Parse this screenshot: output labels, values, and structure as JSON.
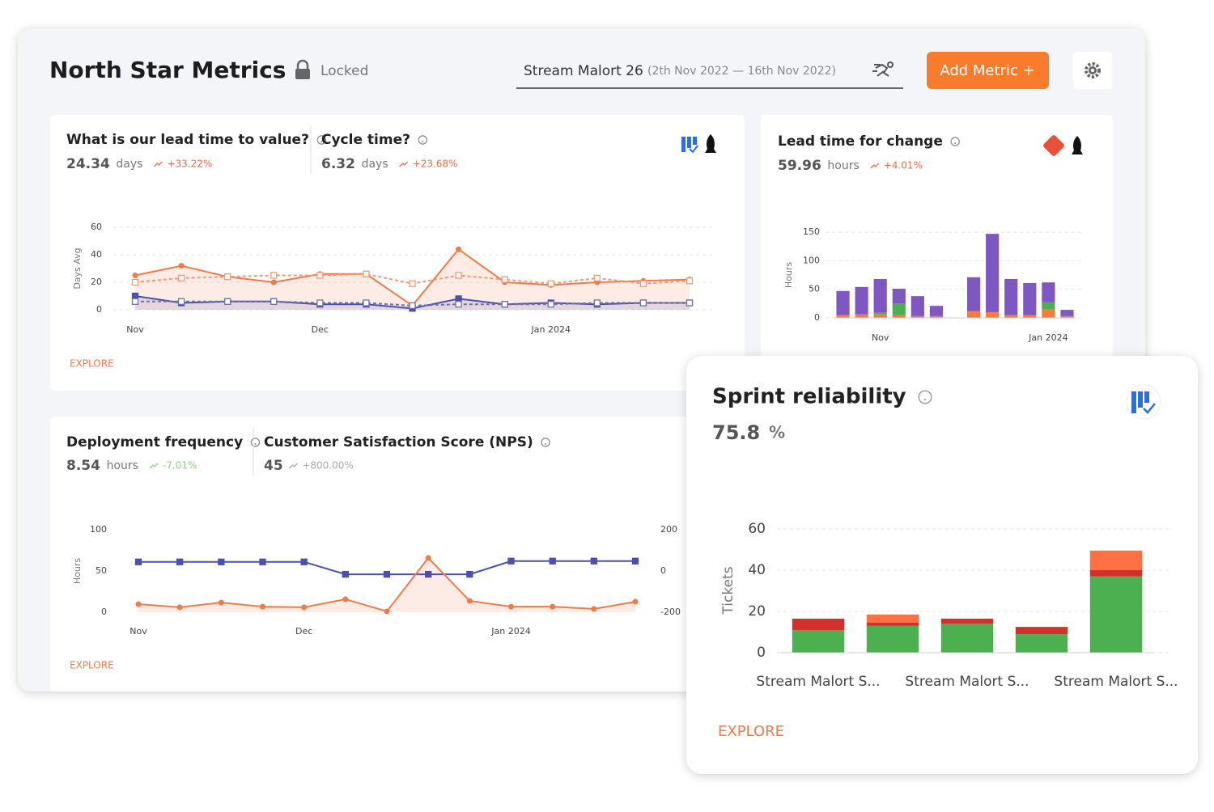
{
  "header": {
    "title": "North Star Metrics",
    "lock": "Locked",
    "stream": "Stream Malort 26",
    "range": "(2th Nov 2022 — 16th Nov 2022)",
    "button": "Add Metric +"
  },
  "panels": [
    {
      "metrics": [
        {
          "title": "What is our lead time to value?",
          "value": "24.34",
          "unit": "days",
          "change": "+33.22%",
          "change_color": "#e8704a"
        },
        {
          "title": "Cycle time?",
          "value": "6.32",
          "unit": "days",
          "change": "+23.68%",
          "change_color": "#e8704a"
        }
      ],
      "explore": "EXPLORE",
      "chart": {
        "type": "line",
        "ylabel": "Days Avg",
        "categories": [
          "Nov",
          null,
          null,
          null,
          "Dec",
          null,
          null,
          null,
          null,
          "Jan 2024",
          null,
          null,
          null
        ],
        "ylim": [
          0,
          60
        ],
        "yticks": [
          0,
          20,
          40,
          60
        ],
        "grid": true,
        "series": [
          {
            "color": "#f07a4a",
            "dash": false,
            "area": true,
            "marker": "circle",
            "values": [
              25,
              32,
              24,
              20,
              26,
              26,
              3,
              44,
              20,
              18,
              20,
              21,
              22
            ]
          },
          {
            "color": "#f29a72",
            "dash": true,
            "area": false,
            "marker": "hollow-square",
            "values": [
              20,
              23,
              24,
              25,
              25,
              26,
              19,
              25,
              22,
              19,
              23,
              19,
              21
            ]
          },
          {
            "color": "#4b4fb0",
            "dash": false,
            "area": true,
            "marker": "square",
            "values": [
              10,
              5,
              6,
              6,
              4,
              4,
              1,
              8,
              4,
              5,
              4,
              5,
              5
            ]
          },
          {
            "color": "#6c75a8",
            "dash": true,
            "area": false,
            "marker": "hollow-square",
            "values": [
              6,
              6,
              6,
              6,
              5,
              5,
              3,
              4,
              4,
              4,
              5,
              5,
              5
            ]
          }
        ]
      }
    },
    {
      "metrics": [
        {
          "title": "Lead time for change",
          "value": "59.96",
          "unit": "hours",
          "change": "+4.01%",
          "change_color": "#e8704a"
        }
      ],
      "chart": {
        "type": "bar",
        "ylabel": "Hours",
        "categories": [
          null,
          null,
          "Nov",
          null,
          null,
          null,
          null,
          null,
          null,
          null,
          null,
          "Jan 2024",
          null
        ],
        "ylim": [
          0,
          150
        ],
        "yticks": [
          0,
          50,
          100,
          150
        ],
        "grid": true,
        "series": [
          {
            "color": "#f47c3c",
            "values": [
              5,
              6,
              6,
              5,
              3,
              3,
              0,
              12,
              10,
              5,
              5,
              15,
              3
            ]
          },
          {
            "color": "#4caf50",
            "values": [
              0,
              0,
              3,
              20,
              0,
              0,
              0,
              0,
              0,
              0,
              0,
              12,
              0
            ]
          },
          {
            "color": "#7e57c2",
            "values": [
              42,
              48,
              59,
              26,
              35,
              18,
              0,
              59,
              137,
              63,
              56,
              35,
              11
            ]
          }
        ]
      }
    },
    {
      "metrics": [
        {
          "title": "Deployment frequency",
          "value": "8.54",
          "unit": "hours",
          "change": "-7.01%",
          "change_color": "#8fd18f"
        },
        {
          "title": "Customer Satisfaction Score (NPS)",
          "value": "45",
          "change": "+800.00%",
          "change_color": "#aaaaaa"
        }
      ],
      "explore": "EXPLORE",
      "chart": {
        "type": "line",
        "ylabel": "Hours",
        "categories": [
          "Nov",
          null,
          null,
          null,
          "Dec",
          null,
          null,
          null,
          null,
          "Jan 2024",
          null,
          null,
          null
        ],
        "ylim": [
          0,
          100
        ],
        "yticks": [
          0,
          50,
          100
        ],
        "y2lim": [
          -200,
          200
        ],
        "y2ticks": [
          -200,
          0,
          200
        ],
        "grid": false,
        "series": [
          {
            "color": "#4b4fb0",
            "dash": false,
            "area": false,
            "marker": "square",
            "values": [
              61,
              61,
              61,
              61,
              61,
              46,
              46,
              46,
              46,
              62,
              62,
              62,
              62
            ]
          },
          {
            "color": "#f07a4a",
            "dash": false,
            "area": true,
            "marker": "circle",
            "axis": "y2",
            "values": [
              -161,
              -176,
              -153,
              -173,
              -176,
              -137,
              -196,
              63,
              -145,
              -173,
              -173,
              -184,
              -149
            ]
          }
        ]
      }
    },
    {
      "metrics": [
        {
          "title": "Sprint reliability",
          "value": "75.8",
          "unit": "%"
        }
      ],
      "explore": "EXPLORE",
      "chart": {
        "type": "bar",
        "ylabel": "Tickets",
        "categories": [
          "Stream Malort S...",
          null,
          "Stream Malort S...",
          null,
          "Stream Malort S..."
        ],
        "ylim": [
          0,
          60
        ],
        "yticks": [
          0,
          20,
          40,
          60
        ],
        "grid": true,
        "series": [
          {
            "color": "#4caf50",
            "values": [
              11,
              13,
              14,
              9,
              37
            ]
          },
          {
            "color": "#d32f2f",
            "values": [
              5.5,
              1.5,
              2.5,
              3.5,
              3
            ]
          },
          {
            "color": "#ff7043",
            "values": [
              0,
              4,
              0,
              0,
              9.5
            ]
          }
        ]
      }
    }
  ]
}
